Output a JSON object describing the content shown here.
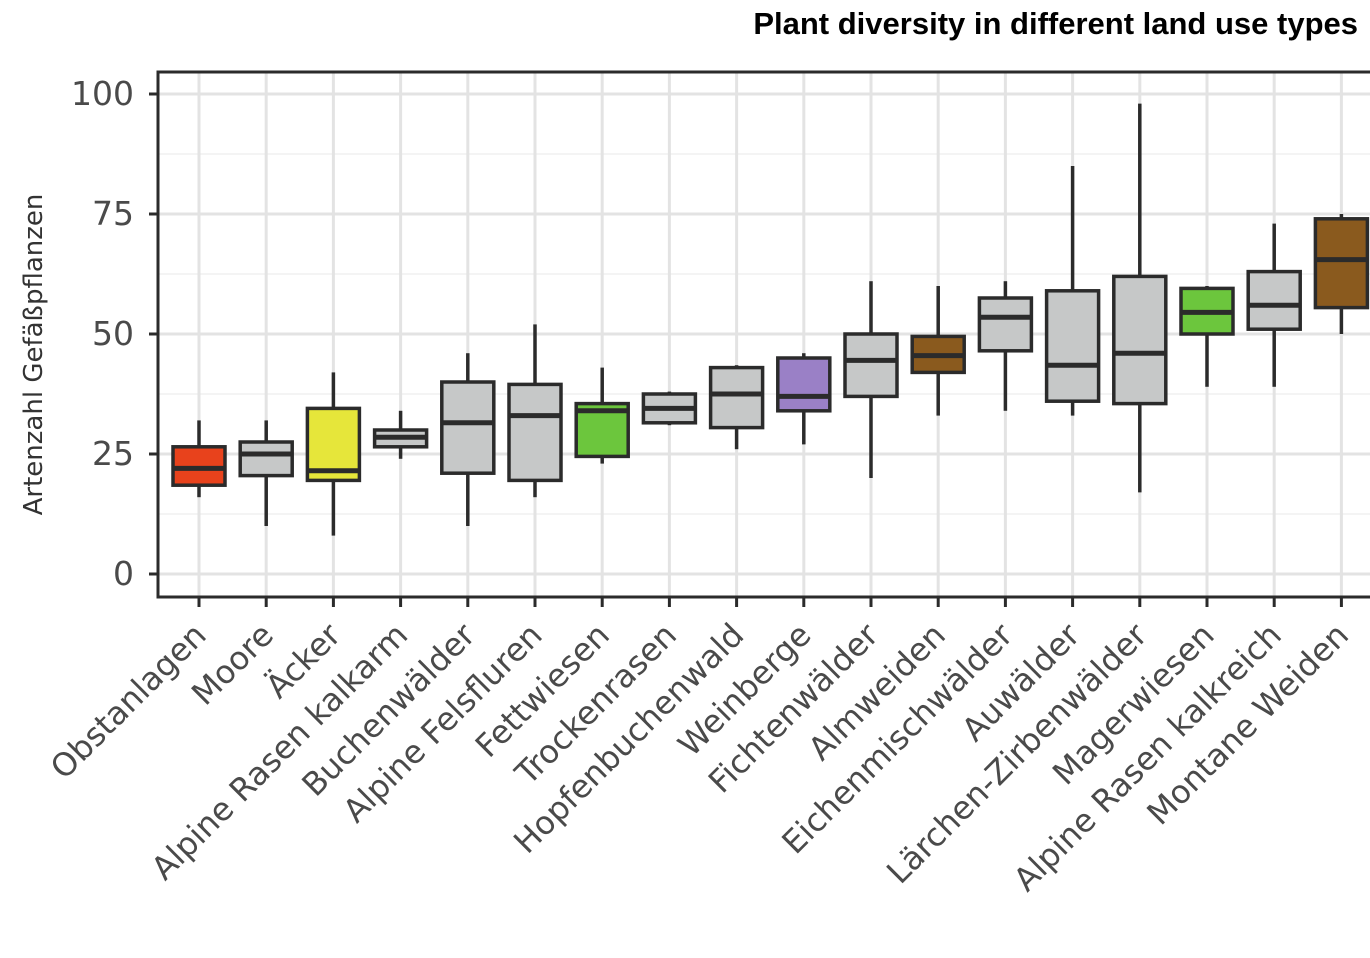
{
  "chart_data": {
    "type": "boxplot",
    "title": "Plant diversity in different land use types",
    "xlabel": "",
    "ylabel": "Artenzahl Gefäßpflanzen",
    "ylim": [
      -5,
      105
    ],
    "yticks": [
      0,
      25,
      50,
      75,
      100
    ],
    "yticklabels": [
      "0",
      "25",
      "50",
      "75",
      "100"
    ],
    "grid": true,
    "categories": [
      {
        "name": "Obstanlagen",
        "min": 16,
        "q1": 18.5,
        "median": 22,
        "q3": 26.5,
        "max": 32,
        "color": "#e8421c"
      },
      {
        "name": "Moore",
        "min": 10,
        "q1": 20.5,
        "median": 25,
        "q3": 27.5,
        "max": 32,
        "color": "#c6c8c8"
      },
      {
        "name": "Äcker",
        "min": 8,
        "q1": 19.5,
        "median": 21.5,
        "q3": 34.5,
        "max": 42,
        "color": "#e6e63a"
      },
      {
        "name": "Alpine Rasen kalkarm",
        "min": 24,
        "q1": 26.5,
        "median": 28.5,
        "q3": 30,
        "max": 34,
        "color": "#c6c8c8"
      },
      {
        "name": "Buchenwälder",
        "min": 10,
        "q1": 21,
        "median": 31.5,
        "q3": 40,
        "max": 46,
        "color": "#c6c8c8"
      },
      {
        "name": "Alpine Felsfluren",
        "min": 16,
        "q1": 19.5,
        "median": 33,
        "q3": 39.5,
        "max": 52,
        "color": "#c6c8c8"
      },
      {
        "name": "Fettwiesen",
        "min": 23,
        "q1": 24.5,
        "median": 34,
        "q3": 35.5,
        "max": 43,
        "color": "#6cc63d"
      },
      {
        "name": "Trockenrasen",
        "min": 31,
        "q1": 31.5,
        "median": 34.5,
        "q3": 37.5,
        "max": 38,
        "color": "#c6c8c8"
      },
      {
        "name": "Hopfenbuchenwald",
        "min": 26,
        "q1": 30.5,
        "median": 37.5,
        "q3": 43,
        "max": 43.5,
        "color": "#c6c8c8"
      },
      {
        "name": "Weinberge",
        "min": 27,
        "q1": 34,
        "median": 37,
        "q3": 45,
        "max": 46,
        "color": "#9a80c6"
      },
      {
        "name": "Fichtenwälder",
        "min": 20,
        "q1": 37,
        "median": 44.5,
        "q3": 50,
        "max": 61,
        "color": "#c6c8c8"
      },
      {
        "name": "Almweiden",
        "min": 33,
        "q1": 42,
        "median": 45.5,
        "q3": 49.5,
        "max": 60,
        "color": "#8a5a1e"
      },
      {
        "name": "Eichenmischwälder",
        "min": 34,
        "q1": 46.5,
        "median": 53.5,
        "q3": 57.5,
        "max": 61,
        "color": "#c6c8c8"
      },
      {
        "name": "Auwälder",
        "min": 33,
        "q1": 36,
        "median": 43.5,
        "q3": 59,
        "max": 85,
        "color": "#c6c8c8"
      },
      {
        "name": "Lärchen-Zirbenwälder",
        "min": 17,
        "q1": 35.5,
        "median": 46,
        "q3": 62,
        "max": 98,
        "color": "#c6c8c8"
      },
      {
        "name": "Magerwiesen",
        "min": 39,
        "q1": 50,
        "median": 54.5,
        "q3": 59.5,
        "max": 60,
        "color": "#6cc63d"
      },
      {
        "name": "Alpine Rasen kalkreich",
        "min": 39,
        "q1": 51,
        "median": 56,
        "q3": 63,
        "max": 73,
        "color": "#c6c8c8"
      },
      {
        "name": "Montane Weiden",
        "min": 50,
        "q1": 55.5,
        "median": 65.5,
        "q3": 74,
        "max": 75,
        "color": "#8a5a1e"
      }
    ]
  }
}
